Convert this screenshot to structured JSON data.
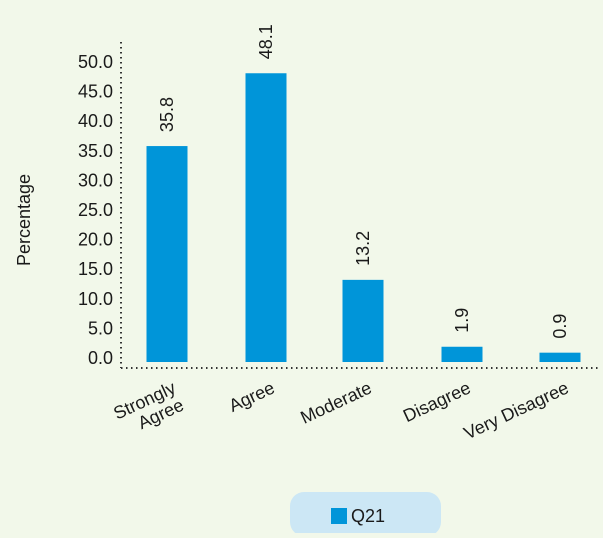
{
  "chart_data": {
    "type": "bar",
    "categories": [
      "Strongly Agree",
      "Agree",
      "Moderate",
      "Disagree",
      "Very Disagree"
    ],
    "category_label_lines": [
      [
        "Strongly",
        "Agree"
      ],
      [
        "Agree"
      ],
      [
        "Moderate"
      ],
      [
        "Disagree"
      ],
      [
        "Very Disagree"
      ]
    ],
    "series": [
      {
        "name": "Q21",
        "values": [
          35.8,
          48.1,
          13.2,
          1.9,
          0.9
        ]
      }
    ],
    "value_labels": [
      "35.8",
      "48.1",
      "13.2",
      "1.9",
      "0.9"
    ],
    "title": "",
    "xlabel": "",
    "ylabel": "Percentage",
    "ylim": [
      0,
      50
    ],
    "y_ticks": [
      0,
      5,
      10,
      15,
      20,
      25,
      30,
      35,
      40,
      45,
      50
    ],
    "y_tick_labels": [
      "0.0",
      "5.0",
      "10.0",
      "15.0",
      "20.0",
      "25.0",
      "30.0",
      "35.0",
      "40.0",
      "45.0",
      "50.0"
    ],
    "grid": false,
    "legend_position": "bottom-center",
    "bar_color": "#0095d9",
    "background_color": "#f2f8ea",
    "legend_background": "#cce7f5"
  }
}
